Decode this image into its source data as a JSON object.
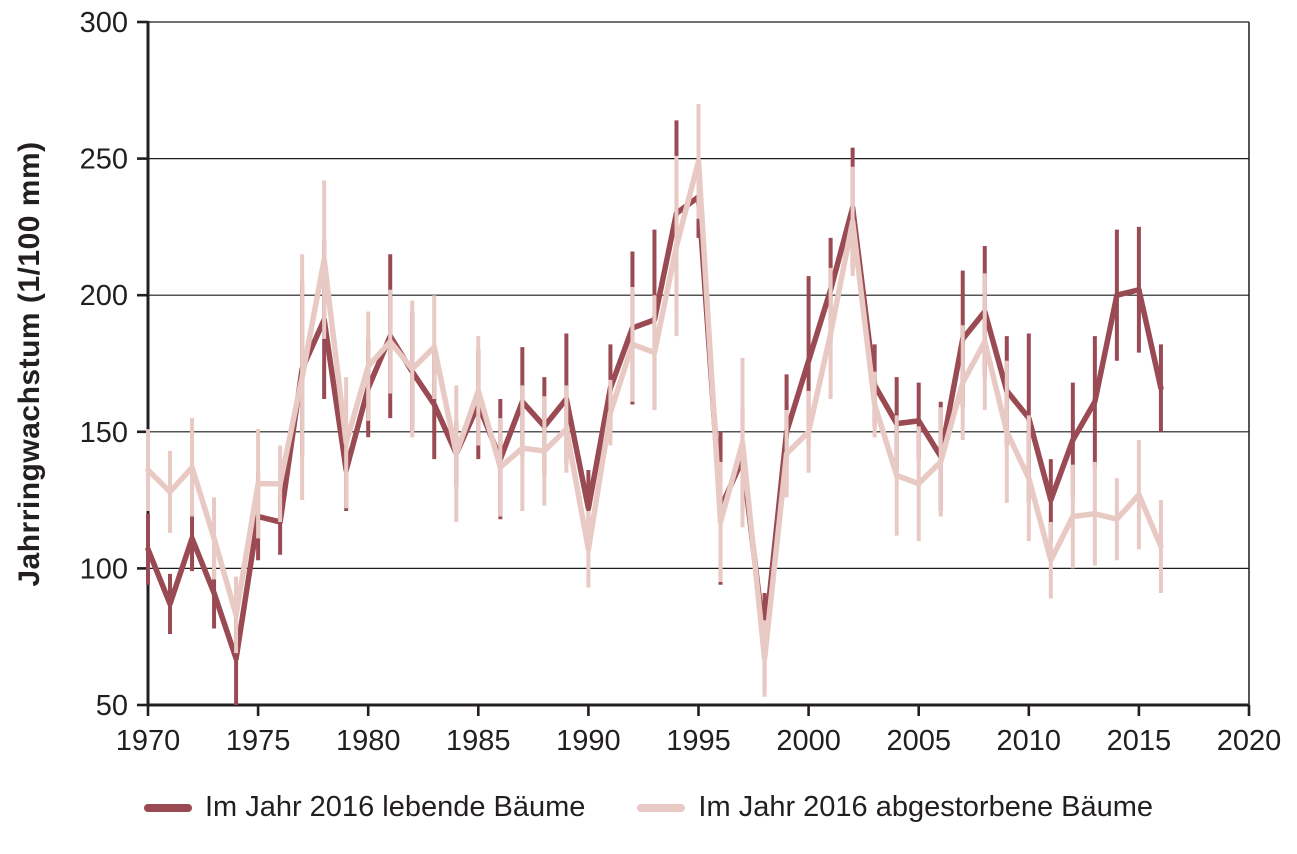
{
  "colors": {
    "series_living": "#9a4a52",
    "series_dead": "#e8c9c4",
    "text": "#231f20",
    "gridline": "#1d1d1b",
    "axis": "#231f20",
    "background": "#ffffff"
  },
  "chart_data": {
    "type": "line",
    "title": "",
    "xlabel": "",
    "ylabel": "Jahrringwachstum (1/100 mm)",
    "xlim": [
      1970,
      2020
    ],
    "ylim": [
      50,
      300
    ],
    "xticks": [
      1970,
      1975,
      1980,
      1985,
      1990,
      1995,
      2000,
      2005,
      2010,
      2015,
      2020
    ],
    "yticks": [
      50,
      100,
      150,
      200,
      250,
      300
    ],
    "grid": true,
    "legend_position": "bottom",
    "x": [
      1970,
      1971,
      1972,
      1973,
      1974,
      1975,
      1976,
      1977,
      1978,
      1979,
      1980,
      1981,
      1982,
      1983,
      1984,
      1985,
      1986,
      1987,
      1988,
      1989,
      1990,
      1991,
      1992,
      1993,
      1994,
      1995,
      1996,
      1997,
      1998,
      1999,
      2000,
      2001,
      2002,
      2003,
      2004,
      2005,
      2006,
      2007,
      2008,
      2009,
      2010,
      2011,
      2012,
      2013,
      2014,
      2015,
      2016
    ],
    "series": [
      {
        "name": "Im Jahr 2016 lebende Bäume",
        "color": "#9a4a52",
        "values": [
          107,
          87,
          111,
          91,
          67,
          119,
          117,
          173,
          191,
          136,
          166,
          185,
          172,
          160,
          142,
          160,
          140,
          161,
          152,
          162,
          122,
          166,
          188,
          191,
          230,
          236,
          122,
          140,
          73,
          150,
          176,
          202,
          232,
          167,
          153,
          154,
          141,
          184,
          194,
          165,
          155,
          125,
          147,
          161,
          200,
          202,
          166
        ],
        "errors": [
          13,
          11,
          12,
          13,
          17,
          16,
          12,
          32,
          29,
          15,
          18,
          30,
          22,
          20,
          12,
          20,
          22,
          20,
          18,
          24,
          14,
          16,
          28,
          33,
          34,
          15,
          28,
          19,
          18,
          21,
          31,
          19,
          22,
          15,
          17,
          14,
          20,
          25,
          24,
          20,
          31,
          15,
          21,
          24,
          24,
          23,
          16
        ]
      },
      {
        "name": "Im Jahr 2016 abgestorbene Bäume",
        "color": "#e8c9c4",
        "values": [
          136,
          128,
          137,
          111,
          83,
          131,
          131,
          170,
          213,
          146,
          174,
          183,
          173,
          181,
          142,
          165,
          137,
          144,
          143,
          151,
          107,
          157,
          182,
          179,
          218,
          249,
          117,
          146,
          67,
          142,
          150,
          186,
          227,
          160,
          134,
          131,
          139,
          168,
          183,
          150,
          133,
          103,
          119,
          120,
          118,
          127,
          108
        ],
        "errors": [
          15,
          15,
          18,
          15,
          14,
          20,
          14,
          45,
          29,
          24,
          20,
          19,
          25,
          19,
          25,
          20,
          18,
          23,
          20,
          16,
          14,
          12,
          21,
          21,
          33,
          21,
          22,
          31,
          14,
          16,
          15,
          24,
          20,
          12,
          22,
          21,
          20,
          21,
          25,
          26,
          23,
          14,
          19,
          19,
          15,
          20,
          17
        ]
      }
    ]
  }
}
